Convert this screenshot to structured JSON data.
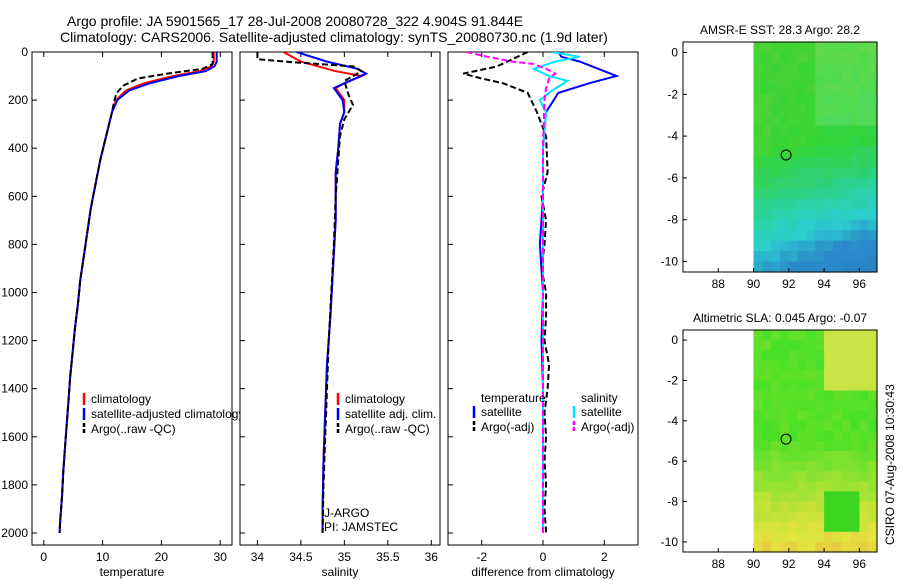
{
  "title_line1": "Argo profile: JA 5901565_17 28-Jul-2008 20080728_322 4.904S 91.844E",
  "title_line2": "Climatology: CARS2006. Satellite-adjusted climatology: synTS_20080730.nc (1.9d later)",
  "credit": "CSIRO 07-Aug-2008 10:30:43",
  "colors": {
    "clim": "#ff0000",
    "sat": "#0000ff",
    "argo": "#000000",
    "sal_sat": "#00e5ff",
    "sal_argo": "#ff00ff"
  },
  "chart_data": [
    {
      "id": "temperature",
      "type": "line",
      "xlabel": "temperature",
      "ylabel": "",
      "xlim": [
        -2,
        32
      ],
      "ylim": [
        2050,
        0
      ],
      "xticks": [
        "0",
        "10",
        "20",
        "30"
      ],
      "yticks": [
        "0",
        "200",
        "400",
        "600",
        "800",
        "1000",
        "1200",
        "1400",
        "1600",
        "1800",
        "2000"
      ],
      "legend": [
        "climatology",
        "satellite-adjusted climatology",
        "Argo(..raw -QC)"
      ],
      "series": [
        {
          "name": "climatology",
          "color_key": "clim",
          "dash": "",
          "points": [
            [
              28.9,
              0
            ],
            [
              28.9,
              40
            ],
            [
              28.5,
              60
            ],
            [
              26.5,
              80
            ],
            [
              22,
              100
            ],
            [
              17,
              130
            ],
            [
              14,
              160
            ],
            [
              12.3,
              200
            ],
            [
              11.6,
              250
            ],
            [
              10.6,
              350
            ],
            [
              9.6,
              450
            ],
            [
              8.8,
              550
            ],
            [
              8,
              650
            ],
            [
              7.4,
              750
            ],
            [
              6.8,
              850
            ],
            [
              6.2,
              950
            ],
            [
              5.8,
              1050
            ],
            [
              5.3,
              1150
            ],
            [
              4.9,
              1250
            ],
            [
              4.5,
              1350
            ],
            [
              4.2,
              1450
            ],
            [
              3.9,
              1550
            ],
            [
              3.6,
              1650
            ],
            [
              3.3,
              1750
            ],
            [
              3.1,
              1850
            ],
            [
              2.8,
              1950
            ],
            [
              2.7,
              2000
            ]
          ]
        },
        {
          "name": "satellite-adjusted climatology",
          "color_key": "sat",
          "dash": "",
          "points": [
            [
              29.4,
              0
            ],
            [
              29.4,
              40
            ],
            [
              29,
              60
            ],
            [
              27.5,
              80
            ],
            [
              23,
              100
            ],
            [
              18,
              130
            ],
            [
              14.5,
              160
            ],
            [
              12.5,
              200
            ],
            [
              11.6,
              250
            ],
            [
              10.6,
              350
            ],
            [
              9.6,
              450
            ],
            [
              8.8,
              550
            ],
            [
              8,
              650
            ],
            [
              7.4,
              750
            ],
            [
              6.8,
              850
            ],
            [
              6.2,
              950
            ],
            [
              5.8,
              1050
            ],
            [
              5.3,
              1150
            ],
            [
              4.9,
              1250
            ],
            [
              4.5,
              1350
            ],
            [
              4.2,
              1450
            ],
            [
              3.9,
              1550
            ],
            [
              3.6,
              1650
            ],
            [
              3.3,
              1750
            ],
            [
              3.1,
              1850
            ],
            [
              2.8,
              1950
            ],
            [
              2.7,
              2000
            ]
          ]
        },
        {
          "name": "Argo(..raw -QC)",
          "color_key": "argo",
          "dash": "6,3",
          "points": [
            [
              28.7,
              0
            ],
            [
              28.7,
              50
            ],
            [
              27,
              70
            ],
            [
              21,
              90
            ],
            [
              16,
              110
            ],
            [
              13.5,
              140
            ],
            [
              12.4,
              170
            ],
            [
              12,
              200
            ],
            [
              11.6,
              250
            ],
            [
              10.6,
              350
            ],
            [
              9.6,
              450
            ],
            [
              8.8,
              550
            ],
            [
              8,
              650
            ],
            [
              7.4,
              750
            ],
            [
              6.8,
              850
            ],
            [
              6.2,
              950
            ],
            [
              5.8,
              1050
            ],
            [
              5.3,
              1150
            ],
            [
              4.9,
              1250
            ],
            [
              4.5,
              1350
            ],
            [
              4.2,
              1450
            ],
            [
              3.9,
              1550
            ],
            [
              3.6,
              1650
            ],
            [
              3.3,
              1750
            ],
            [
              3.1,
              1850
            ],
            [
              2.8,
              1950
            ],
            [
              2.7,
              2000
            ]
          ]
        }
      ]
    },
    {
      "id": "salinity",
      "type": "line",
      "xlabel": "salinity",
      "ylabel": "",
      "xlim": [
        33.8,
        36.1
      ],
      "ylim": [
        2050,
        0
      ],
      "xticks": [
        "34",
        "34.5",
        "35",
        "35.5",
        "36"
      ],
      "yticks": [],
      "legend": [
        "climatology",
        "satellite adj. clim.",
        "Argo(..raw -QC)"
      ],
      "annotations": [
        "J-ARGO",
        "PI: JAMSTEC"
      ],
      "series": [
        {
          "name": "climatology",
          "color_key": "clim",
          "dash": "",
          "points": [
            [
              34.3,
              0
            ],
            [
              34.5,
              40
            ],
            [
              34.9,
              80
            ],
            [
              35.2,
              100
            ],
            [
              35.0,
              130
            ],
            [
              34.9,
              150
            ],
            [
              35.0,
              200
            ],
            [
              35.0,
              250
            ],
            [
              34.95,
              300
            ],
            [
              34.93,
              400
            ],
            [
              34.9,
              500
            ],
            [
              34.9,
              700
            ],
            [
              34.87,
              900
            ],
            [
              34.84,
              1100
            ],
            [
              34.8,
              1300
            ],
            [
              34.78,
              1500
            ],
            [
              34.76,
              1700
            ],
            [
              34.75,
              1900
            ]
          ]
        },
        {
          "name": "satellite adj. clim.",
          "color_key": "sat",
          "dash": "",
          "points": [
            [
              34.45,
              0
            ],
            [
              34.8,
              40
            ],
            [
              35.15,
              70
            ],
            [
              35.25,
              90
            ],
            [
              35.0,
              130
            ],
            [
              34.88,
              150
            ],
            [
              34.98,
              200
            ],
            [
              35.0,
              250
            ],
            [
              34.95,
              300
            ],
            [
              34.93,
              400
            ],
            [
              34.9,
              500
            ],
            [
              34.9,
              700
            ],
            [
              34.87,
              900
            ],
            [
              34.84,
              1100
            ],
            [
              34.8,
              1300
            ],
            [
              34.78,
              1500
            ],
            [
              34.76,
              1700
            ],
            [
              34.75,
              1900
            ],
            [
              34.75,
              2000
            ]
          ]
        },
        {
          "name": "Argo(..raw -QC)",
          "color_key": "argo",
          "dash": "6,3",
          "points": [
            [
              34.0,
              0
            ],
            [
              34.0,
              30
            ],
            [
              34.5,
              45
            ],
            [
              35.1,
              60
            ],
            [
              35.2,
              80
            ],
            [
              35.0,
              120
            ],
            [
              35.05,
              180
            ],
            [
              35.1,
              220
            ],
            [
              35.0,
              280
            ],
            [
              34.95,
              350
            ],
            [
              34.93,
              450
            ],
            [
              34.9,
              600
            ],
            [
              34.88,
              800
            ],
            [
              34.85,
              1000
            ],
            [
              34.82,
              1200
            ],
            [
              34.8,
              1400
            ],
            [
              34.78,
              1600
            ],
            [
              34.76,
              1800
            ],
            [
              34.75,
              2000
            ]
          ]
        }
      ]
    },
    {
      "id": "difference",
      "type": "line",
      "xlabel": "difference from climatology",
      "ylabel": "",
      "xlim": [
        -3.1,
        3.1
      ],
      "ylim": [
        2050,
        0
      ],
      "xticks": [
        "-2",
        "0",
        "2"
      ],
      "yticks": [],
      "legend": [
        "temperature",
        "satellite",
        "Argo(-adj)",
        "salinity",
        "satellite",
        "Argo(-adj)"
      ],
      "series": [
        {
          "name": "temperature satellite",
          "color_key": "sat",
          "dash": "",
          "points": [
            [
              0.5,
              0
            ],
            [
              0.6,
              20
            ],
            [
              1.2,
              40
            ],
            [
              2.0,
              80
            ],
            [
              2.4,
              100
            ],
            [
              1.5,
              130
            ],
            [
              0.5,
              170
            ],
            [
              0.1,
              250
            ],
            [
              0,
              400
            ],
            [
              0,
              600
            ],
            [
              -0.1,
              800
            ],
            [
              0,
              1000
            ],
            [
              -0.05,
              1200
            ],
            [
              0,
              1400
            ],
            [
              0,
              1600
            ],
            [
              0,
              1800
            ],
            [
              0,
              2000
            ]
          ]
        },
        {
          "name": "temperature Argo(-adj)",
          "color_key": "argo",
          "dash": "6,3",
          "points": [
            [
              -0.5,
              0
            ],
            [
              -1.0,
              30
            ],
            [
              -1.5,
              60
            ],
            [
              -2.6,
              90
            ],
            [
              -2.0,
              110
            ],
            [
              -1.3,
              130
            ],
            [
              -0.5,
              170
            ],
            [
              -0.2,
              250
            ],
            [
              0.1,
              350
            ],
            [
              0.15,
              500
            ],
            [
              -0.05,
              600
            ],
            [
              0.1,
              700
            ],
            [
              0.05,
              800
            ],
            [
              -0.05,
              900
            ],
            [
              0.1,
              1000
            ],
            [
              0.1,
              1100
            ],
            [
              0.05,
              1200
            ],
            [
              0.2,
              1300
            ],
            [
              0.15,
              1400
            ],
            [
              0.05,
              1500
            ],
            [
              0.1,
              1600
            ],
            [
              0.05,
              1700
            ],
            [
              0.1,
              1800
            ],
            [
              0.05,
              1900
            ],
            [
              0.1,
              2000
            ]
          ]
        },
        {
          "name": "salinity satellite",
          "color_key": "sal_sat",
          "dash": "",
          "points": [
            [
              0.3,
              0
            ],
            [
              1.2,
              20
            ],
            [
              0.4,
              40
            ],
            [
              -0.3,
              70
            ],
            [
              0.2,
              100
            ],
            [
              0.8,
              120
            ],
            [
              0.3,
              160
            ],
            [
              -0.1,
              200
            ],
            [
              0.1,
              250
            ],
            [
              0,
              400
            ],
            [
              0,
              700
            ],
            [
              0,
              1000
            ],
            [
              0,
              1400
            ],
            [
              0,
              1800
            ],
            [
              0,
              2000
            ]
          ]
        },
        {
          "name": "salinity Argo(-adj)",
          "color_key": "sal_argo",
          "dash": "6,3",
          "points": [
            [
              -2.5,
              0
            ],
            [
              -1.8,
              20
            ],
            [
              -1.0,
              40
            ],
            [
              -0.3,
              50
            ],
            [
              0.1,
              70
            ],
            [
              0.4,
              90
            ],
            [
              0.2,
              110
            ],
            [
              0.1,
              150
            ],
            [
              0.05,
              200
            ],
            [
              0,
              400
            ],
            [
              0,
              700
            ],
            [
              0,
              1000
            ],
            [
              0,
              1400
            ],
            [
              0,
              1800
            ],
            [
              0,
              2000
            ]
          ]
        }
      ]
    },
    {
      "id": "sst_map",
      "type": "heatmap",
      "title": "AMSR-E SST: 28.3 Argo: 28.2",
      "xlim": [
        86,
        97
      ],
      "ylim": [
        -10.5,
        0.5
      ],
      "xticks": [
        "88",
        "90",
        "92",
        "94",
        "96"
      ],
      "yticks": [
        "0",
        "-2",
        "-4",
        "-6",
        "-8",
        "-10"
      ],
      "data_region_x": [
        90,
        97
      ],
      "marker": [
        91.844,
        -4.904
      ]
    },
    {
      "id": "sla_map",
      "type": "heatmap",
      "title": "Altimetric SLA: 0.045 Argo: -0.07",
      "xlim": [
        86,
        97
      ],
      "ylim": [
        -10.5,
        0.5
      ],
      "xticks": [
        "88",
        "90",
        "92",
        "94",
        "96"
      ],
      "yticks": [
        "0",
        "-2",
        "-4",
        "-6",
        "-8",
        "-10"
      ],
      "data_region_x": [
        90,
        97
      ],
      "marker": [
        91.844,
        -4.904
      ]
    }
  ]
}
